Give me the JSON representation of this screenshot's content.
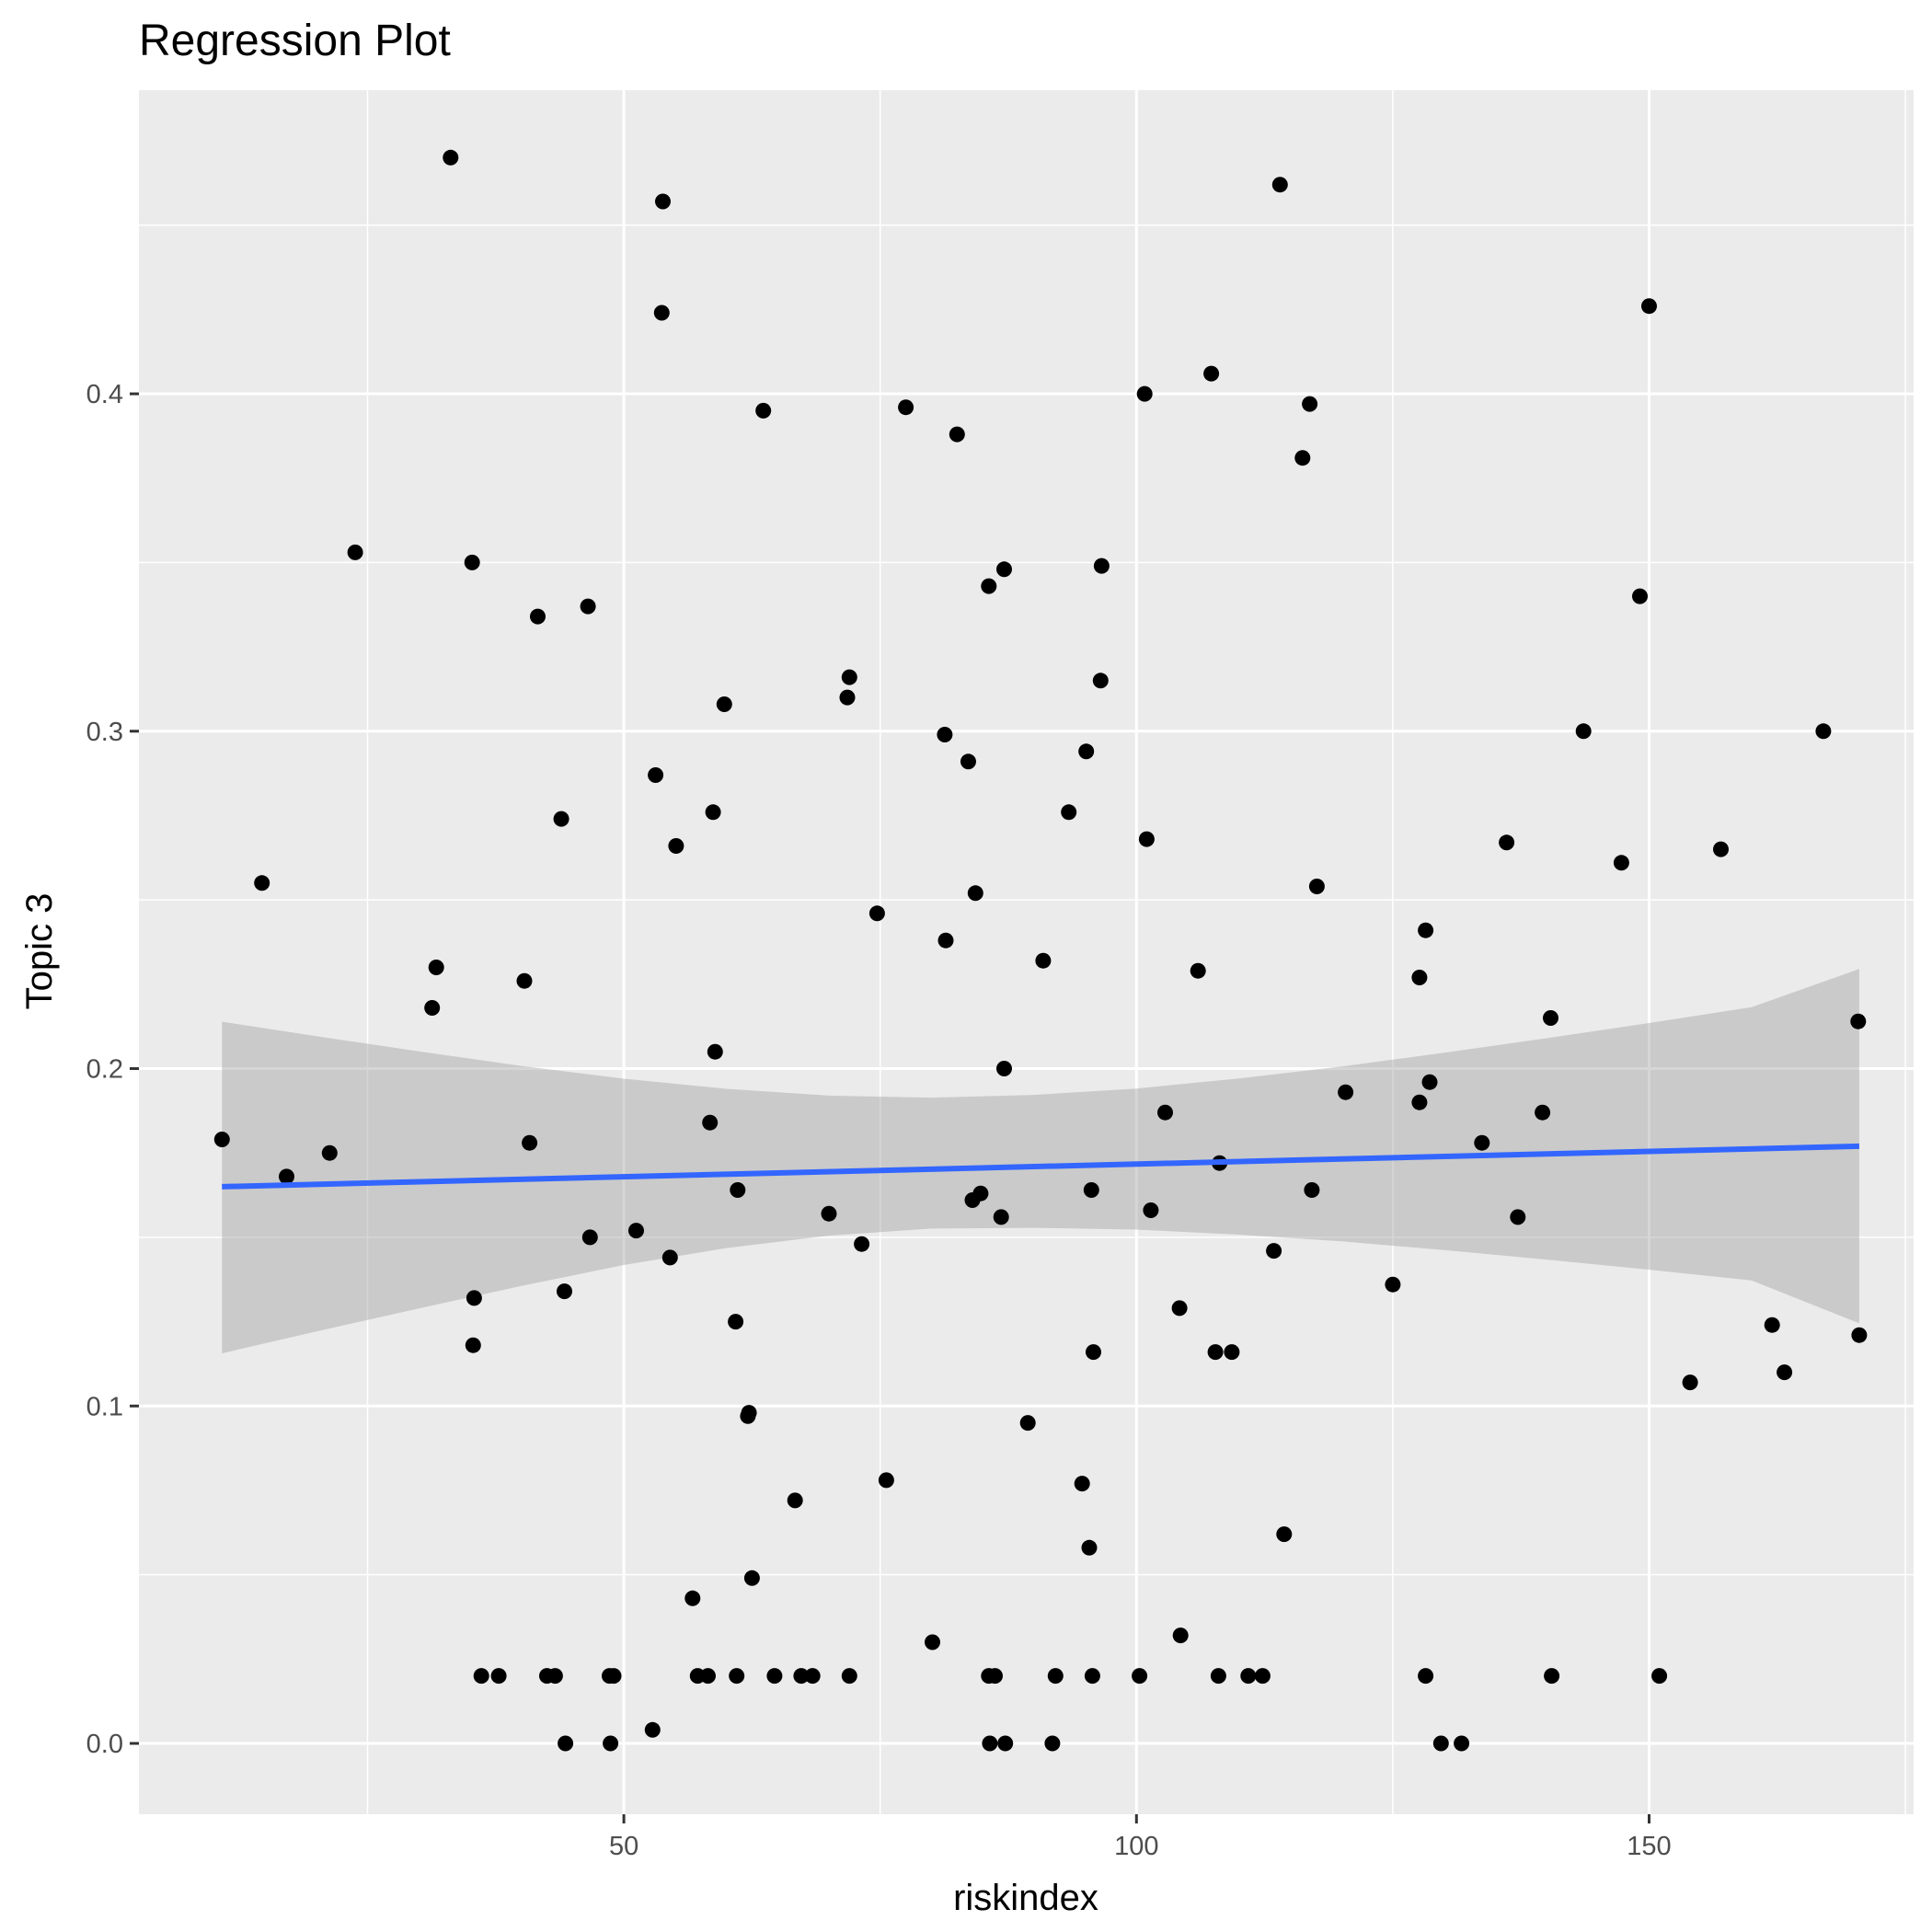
{
  "chart_data": {
    "type": "scatter",
    "title": "Regression Plot",
    "xlabel": "riskindex",
    "ylabel": "Topic 3",
    "xlim": [
      2.7,
      175.8
    ],
    "ylim": [
      -0.021,
      0.49
    ],
    "x_ticks": [
      50,
      100,
      150
    ],
    "x_minor_ticks": [
      25,
      75,
      125,
      175
    ],
    "y_ticks": [
      0.0,
      0.1,
      0.2,
      0.3,
      0.4
    ],
    "y_minor_ticks": [
      0.05,
      0.15,
      0.25,
      0.35,
      0.45
    ],
    "x_tick_labels": [
      "50",
      "100",
      "150"
    ],
    "y_tick_labels": [
      "0.0",
      "0.1",
      "0.2",
      "0.3",
      "0.4"
    ],
    "grid": true,
    "colors": {
      "panel": "#ebebeb",
      "grid": "#ffffff",
      "points": "#000000",
      "regression_line": "#3366ff",
      "confidence_band": "#c8c8c8"
    },
    "series": [
      {
        "type": "scatter",
        "points": [
          [
            10.8,
            0.179
          ],
          [
            14.7,
            0.255
          ],
          [
            17.1,
            0.168
          ],
          [
            21.3,
            0.175
          ],
          [
            23.8,
            0.353
          ],
          [
            31.3,
            0.218
          ],
          [
            31.7,
            0.23
          ],
          [
            33.1,
            0.47
          ],
          [
            35.2,
            0.35
          ],
          [
            35.3,
            0.118
          ],
          [
            35.4,
            0.132
          ],
          [
            36.1,
            0.02
          ],
          [
            37.8,
            0.02
          ],
          [
            40.3,
            0.226
          ],
          [
            40.8,
            0.178
          ],
          [
            41.6,
            0.334
          ],
          [
            42.5,
            0.02
          ],
          [
            43.3,
            0.02
          ],
          [
            43.9,
            0.274
          ],
          [
            44.2,
            0.134
          ],
          [
            44.3,
            0.0
          ],
          [
            46.5,
            0.337
          ],
          [
            46.7,
            0.15
          ],
          [
            48.6,
            0.02
          ],
          [
            48.7,
            0.0
          ],
          [
            49.0,
            0.02
          ],
          [
            51.2,
            0.152
          ],
          [
            52.8,
            0.004
          ],
          [
            53.1,
            0.287
          ],
          [
            53.7,
            0.424
          ],
          [
            53.8,
            0.457
          ],
          [
            54.5,
            0.144
          ],
          [
            55.1,
            0.266
          ],
          [
            56.7,
            0.043
          ],
          [
            57.2,
            0.02
          ],
          [
            58.2,
            0.02
          ],
          [
            58.4,
            0.184
          ],
          [
            58.7,
            0.276
          ],
          [
            58.9,
            0.205
          ],
          [
            59.8,
            0.308
          ],
          [
            60.9,
            0.125
          ],
          [
            61.0,
            0.02
          ],
          [
            61.1,
            0.164
          ],
          [
            62.1,
            0.097
          ],
          [
            62.2,
            0.098
          ],
          [
            62.5,
            0.049
          ],
          [
            63.6,
            0.395
          ],
          [
            64.7,
            0.02
          ],
          [
            66.7,
            0.072
          ],
          [
            67.3,
            0.02
          ],
          [
            68.4,
            0.02
          ],
          [
            70.0,
            0.157
          ],
          [
            71.8,
            0.31
          ],
          [
            72.0,
            0.316
          ],
          [
            72.0,
            0.02
          ],
          [
            73.2,
            0.148
          ],
          [
            74.7,
            0.246
          ],
          [
            75.6,
            0.078
          ],
          [
            77.5,
            0.396
          ],
          [
            80.1,
            0.03
          ],
          [
            81.3,
            0.299
          ],
          [
            81.4,
            0.238
          ],
          [
            82.5,
            0.388
          ],
          [
            83.6,
            0.291
          ],
          [
            84.0,
            0.161
          ],
          [
            84.3,
            0.252
          ],
          [
            84.8,
            0.163
          ],
          [
            85.6,
            0.343
          ],
          [
            85.6,
            0.02
          ],
          [
            85.7,
            0.0
          ],
          [
            86.2,
            0.02
          ],
          [
            86.8,
            0.156
          ],
          [
            87.1,
            0.348
          ],
          [
            87.1,
            0.2
          ],
          [
            87.2,
            0.0
          ],
          [
            89.4,
            0.095
          ],
          [
            90.9,
            0.232
          ],
          [
            91.8,
            0.0
          ],
          [
            92.1,
            0.02
          ],
          [
            93.4,
            0.276
          ],
          [
            94.7,
            0.077
          ],
          [
            95.1,
            0.294
          ],
          [
            95.4,
            0.058
          ],
          [
            95.6,
            0.164
          ],
          [
            95.7,
            0.02
          ],
          [
            95.8,
            0.116
          ],
          [
            96.5,
            0.315
          ],
          [
            96.6,
            0.349
          ],
          [
            100.3,
            0.02
          ],
          [
            100.8,
            0.4
          ],
          [
            101.0,
            0.268
          ],
          [
            101.4,
            0.158
          ],
          [
            102.8,
            0.187
          ],
          [
            104.2,
            0.129
          ],
          [
            104.3,
            0.032
          ],
          [
            106.0,
            0.229
          ],
          [
            107.3,
            0.406
          ],
          [
            107.7,
            0.116
          ],
          [
            108.0,
            0.02
          ],
          [
            108.1,
            0.172
          ],
          [
            109.3,
            0.116
          ],
          [
            110.9,
            0.02
          ],
          [
            112.3,
            0.02
          ],
          [
            113.4,
            0.146
          ],
          [
            114.0,
            0.462
          ],
          [
            114.4,
            0.062
          ],
          [
            116.2,
            0.381
          ],
          [
            116.9,
            0.397
          ],
          [
            117.1,
            0.164
          ],
          [
            117.6,
            0.254
          ],
          [
            120.4,
            0.193
          ],
          [
            125.0,
            0.136
          ],
          [
            127.6,
            0.19
          ],
          [
            127.6,
            0.227
          ],
          [
            128.2,
            0.241
          ],
          [
            128.2,
            0.02
          ],
          [
            128.6,
            0.196
          ],
          [
            129.7,
            0.0
          ],
          [
            131.7,
            0.0
          ],
          [
            133.7,
            0.178
          ],
          [
            136.1,
            0.267
          ],
          [
            137.2,
            0.156
          ],
          [
            139.6,
            0.187
          ],
          [
            140.4,
            0.215
          ],
          [
            140.5,
            0.02
          ],
          [
            143.6,
            0.3
          ],
          [
            147.3,
            0.261
          ],
          [
            149.1,
            0.34
          ],
          [
            150.0,
            0.426
          ],
          [
            151.0,
            0.02
          ],
          [
            154.0,
            0.107
          ],
          [
            157.0,
            0.265
          ],
          [
            162.0,
            0.124
          ],
          [
            163.2,
            0.11
          ],
          [
            167.0,
            0.3
          ],
          [
            170.4,
            0.214
          ],
          [
            170.5,
            0.121
          ]
        ]
      },
      {
        "type": "line",
        "x": [
          10.8,
          170.5
        ],
        "y": [
          0.165,
          0.177
        ]
      },
      {
        "type": "area",
        "x": [
          10.8,
          20,
          30,
          40,
          50,
          60,
          70,
          80,
          90,
          100,
          110,
          120,
          130,
          140,
          150,
          160,
          170.5
        ],
        "upper": [
          0.2139,
          0.2096,
          0.2051,
          0.2008,
          0.197,
          0.194,
          0.192,
          0.1914,
          0.1922,
          0.1941,
          0.1971,
          0.2006,
          0.2047,
          0.209,
          0.2135,
          0.2182,
          0.2295
        ],
        "lower": [
          0.1156,
          0.1221,
          0.1289,
          0.1356,
          0.1418,
          0.1468,
          0.1505,
          0.1526,
          0.1528,
          0.1523,
          0.1508,
          0.1488,
          0.1462,
          0.1434,
          0.1404,
          0.1372,
          0.1245
        ]
      }
    ]
  }
}
